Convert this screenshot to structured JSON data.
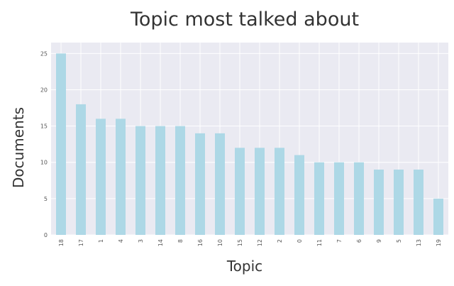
{
  "chart_data": {
    "type": "bar",
    "title": "Topic most talked about",
    "xlabel": "Topic",
    "ylabel": "Documents",
    "categories": [
      "18",
      "17",
      "1",
      "4",
      "3",
      "14",
      "8",
      "16",
      "10",
      "15",
      "12",
      "2",
      "0",
      "11",
      "7",
      "6",
      "9",
      "5",
      "13",
      "19"
    ],
    "values": [
      25,
      18,
      16,
      16,
      15,
      15,
      15,
      14,
      14,
      12,
      12,
      12,
      11,
      10,
      10,
      10,
      9,
      9,
      9,
      5
    ],
    "ylim": [
      0,
      26.5
    ],
    "yticks": [
      0,
      5,
      10,
      15,
      20,
      25
    ],
    "grid": true,
    "colors": {
      "bar": "#add8e6",
      "plot_background": "#eaeaf2",
      "grid": "#ffffff"
    }
  }
}
